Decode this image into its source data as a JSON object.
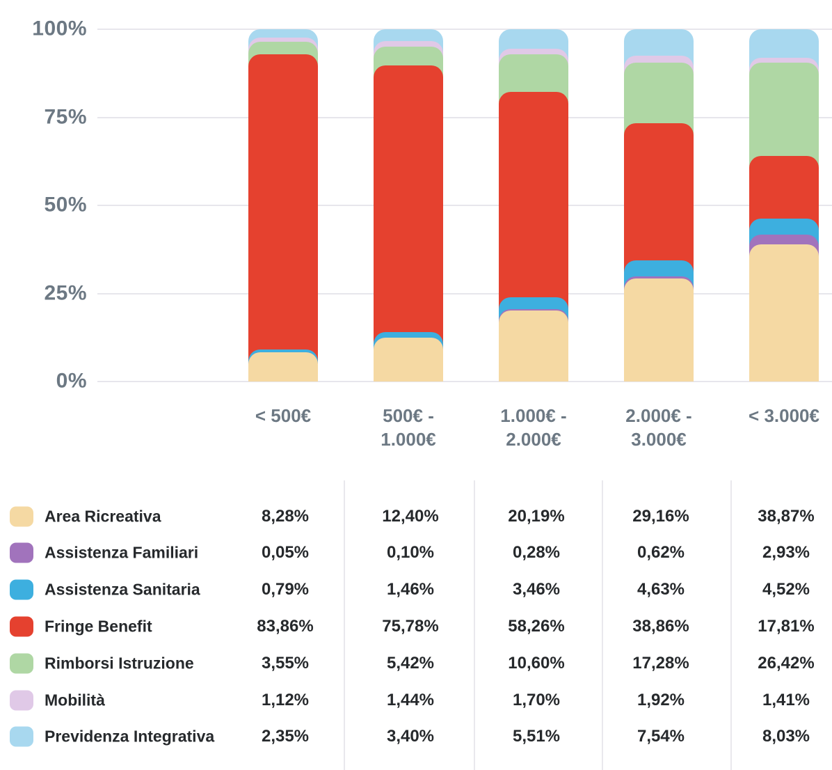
{
  "chart_data": {
    "type": "bar",
    "subtype": "stacked-100-percent",
    "title": "",
    "xlabel": "",
    "ylabel": "",
    "ylim": [
      0,
      100
    ],
    "grid": true,
    "legend_position": "bottom-table",
    "yticks_top_down": [
      "100%",
      "75%",
      "50%",
      "25%",
      "0%"
    ],
    "categories": [
      "< 500€",
      "500€ - 1.000€",
      "1.000€ - 2.000€",
      "2.000€ - 3.000€",
      "< 3.000€"
    ],
    "category_lines": [
      [
        "< 500€"
      ],
      [
        "500€ -",
        "1.000€"
      ],
      [
        "1.000€ -",
        "2.000€"
      ],
      [
        "2.000€ -",
        "3.000€"
      ],
      [
        "< 3.000€"
      ]
    ],
    "series": [
      {
        "name": "Area Ricreativa",
        "color": "#F5D9A3",
        "values": [
          8.28,
          12.4,
          20.19,
          29.16,
          38.87
        ],
        "display": [
          "8,28%",
          "12,40%",
          "20,19%",
          "29,16%",
          "38,87%"
        ]
      },
      {
        "name": "Assistenza Familiari",
        "color": "#A173BC",
        "values": [
          0.05,
          0.1,
          0.28,
          0.62,
          2.93
        ],
        "display": [
          "0,05%",
          "0,10%",
          "0,28%",
          "0,62%",
          "2,93%"
        ]
      },
      {
        "name": "Assistenza Sanitaria",
        "color": "#3DAFDF",
        "values": [
          0.79,
          1.46,
          3.46,
          4.63,
          4.52
        ],
        "display": [
          "0,79%",
          "1,46%",
          "3,46%",
          "4,63%",
          "4,52%"
        ]
      },
      {
        "name": "Fringe Benefit",
        "color": "#E5412F",
        "values": [
          83.86,
          75.78,
          58.26,
          38.86,
          17.81
        ],
        "display": [
          "83,86%",
          "75,78%",
          "58,26%",
          "38,86%",
          "17,81%"
        ]
      },
      {
        "name": "Rimborsi Istruzione",
        "color": "#AFD7A4",
        "values": [
          3.55,
          5.42,
          10.6,
          17.28,
          26.42
        ],
        "display": [
          "3,55%",
          "5,42%",
          "10,60%",
          "17,28%",
          "26,42%"
        ]
      },
      {
        "name": "Mobilità",
        "color": "#E0C9E7",
        "values": [
          1.12,
          1.44,
          1.7,
          1.92,
          1.41
        ],
        "display": [
          "1,12%",
          "1,44%",
          "1,70%",
          "1,92%",
          "1,41%"
        ]
      },
      {
        "name": "Previdenza Integrativa",
        "color": "#A8D8EF",
        "values": [
          2.35,
          3.4,
          5.51,
          7.54,
          8.03
        ],
        "display": [
          "2,35%",
          "3,40%",
          "5,51%",
          "7,54%",
          "8,03%"
        ]
      }
    ],
    "colors": {
      "grid_line": "#e7e6ec",
      "axis_text": "#6c7883",
      "table_text": "#26292c",
      "background": "#ffffff"
    }
  }
}
